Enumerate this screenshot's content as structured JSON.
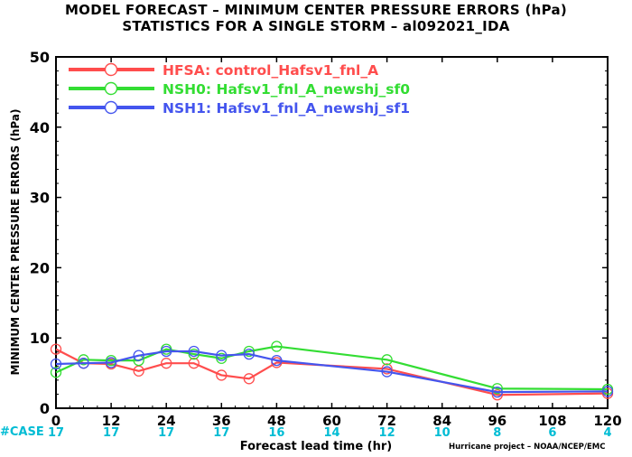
{
  "chart_data": {
    "type": "line",
    "title": "MODEL FORECAST – MINIMUM CENTER PRESSURE ERRORS (hPa)",
    "subtitle": "STATISTICS FOR A SINGLE STORM – al092021_IDA",
    "xlabel": "Forecast lead time (hr)",
    "ylabel": "MINIMUM CENTER PRESSURE ERRORS (hPa)",
    "xlim": [
      0,
      120
    ],
    "ylim": [
      0,
      50
    ],
    "xticks": [
      0,
      12,
      24,
      36,
      48,
      60,
      72,
      84,
      96,
      108,
      120
    ],
    "yticks": [
      0,
      10,
      20,
      30,
      40,
      50
    ],
    "grid": false,
    "legend_position": "top-left",
    "case_label": "#CASE",
    "case_counts": [
      17,
      17,
      17,
      17,
      16,
      14,
      12,
      10,
      8,
      6,
      4
    ],
    "credit": "Hurricane project – NOAA/NCEP/EMC",
    "series": [
      {
        "name": "HFSA: control_Hafsv1_fnl_A",
        "color": "#ff4d4d",
        "x": [
          0,
          6,
          12,
          18,
          24,
          30,
          36,
          42,
          48,
          72,
          96,
          120
        ],
        "y": [
          8.4,
          6.4,
          6.3,
          5.3,
          6.4,
          6.4,
          4.7,
          4.2,
          6.5,
          5.6,
          1.9,
          2.1
        ]
      },
      {
        "name": "NSH0: Hafsv1_fnl_A_newshj_sf0",
        "color": "#33dd33",
        "x": [
          0,
          6,
          12,
          18,
          24,
          30,
          36,
          42,
          48,
          72,
          96,
          120
        ],
        "y": [
          5.1,
          6.9,
          6.8,
          6.8,
          8.4,
          7.7,
          7.1,
          8.1,
          8.8,
          6.9,
          2.8,
          2.7
        ]
      },
      {
        "name": "NSH1: Hafsv1_fnl_A_newshj_sf1",
        "color": "#4455ee",
        "x": [
          0,
          6,
          12,
          18,
          24,
          30,
          36,
          42,
          48,
          72,
          96,
          120
        ],
        "y": [
          6.3,
          6.4,
          6.5,
          7.5,
          8.1,
          8.1,
          7.5,
          7.7,
          6.8,
          5.2,
          2.3,
          2.4
        ]
      }
    ]
  }
}
